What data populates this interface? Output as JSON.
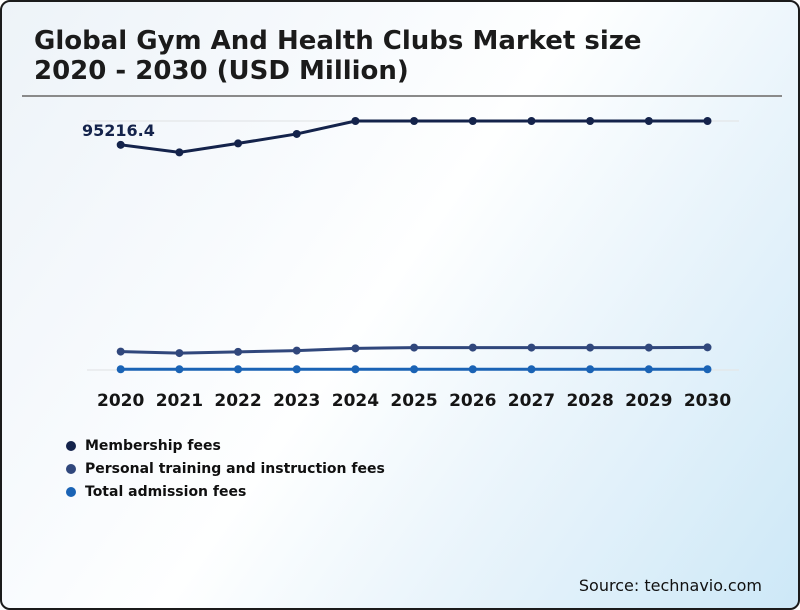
{
  "header": {
    "title_line1": "Global Gym And Health Clubs Market size",
    "title_line2": "2020 - 2030 (USD Million)"
  },
  "footer": {
    "source": "Source: technavio.com"
  },
  "colors": {
    "frame_border": "#1b1b1b",
    "divider": "#8a8a8a",
    "gridline": "#e4e6e8",
    "background_top_left": "#edf3f8",
    "background_bottom_right": "#cde8f7",
    "membership_series": "#14234b",
    "personal_training_series": "#30477c",
    "total_admission_series": "#1a63b5"
  },
  "chart_data": {
    "type": "line",
    "title": "Global Gym And Health Clubs Market size 2020 - 2030 (USD Million)",
    "xlabel": "",
    "ylabel": "USD Million",
    "categories": [
      "2020",
      "2021",
      "2022",
      "2023",
      "2024",
      "2025",
      "2026",
      "2027",
      "2028",
      "2029",
      "2030"
    ],
    "series": [
      {
        "name": "Membership fees",
        "color": "#14234b",
        "values": [
          95216.4,
          93700,
          95500,
          97400,
          100000,
          100000,
          100000,
          100000,
          100000,
          100000,
          100000
        ]
      },
      {
        "name": "Personal training and instruction fees",
        "color": "#30477c",
        "values": [
          53700,
          53400,
          53650,
          53900,
          54350,
          54500,
          54500,
          54500,
          54500,
          54500,
          54550
        ]
      },
      {
        "name": "Total admission fees",
        "color": "#1a63b5",
        "values": [
          50150,
          50150,
          50150,
          50150,
          50150,
          50150,
          50150,
          50150,
          50150,
          50150,
          50150
        ]
      }
    ],
    "ylim": [
      50000,
      100000
    ],
    "grid_values": [
      50000,
      100000
    ],
    "grid_on": true,
    "legend_position": "bottom-left",
    "annotations": [
      {
        "series": "Membership fees",
        "category": "2020",
        "value": 95216.4,
        "text": "95216.4"
      }
    ]
  }
}
